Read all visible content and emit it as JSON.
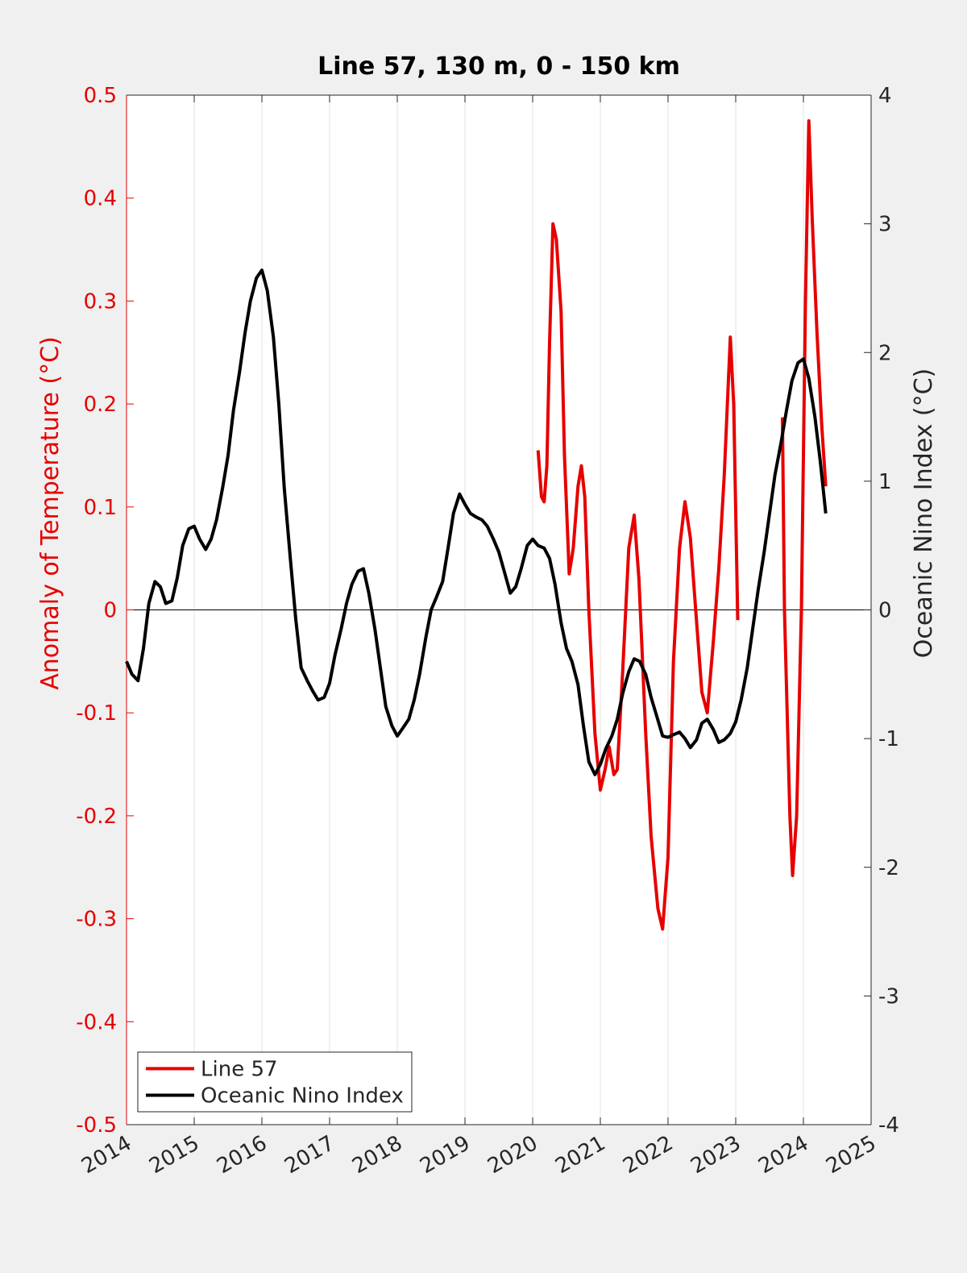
{
  "chart_data": {
    "type": "line",
    "title": "Line 57, 130 m, 0 - 150 km",
    "ylabel": "Anomaly of Temperature (°C)",
    "y2label": "Oceanic Nino Index (°C)",
    "xlim": [
      2014,
      2025
    ],
    "xticks": [
      2014,
      2015,
      2016,
      2017,
      2018,
      2019,
      2020,
      2021,
      2022,
      2023,
      2024,
      2025
    ],
    "ylim": [
      -0.5,
      0.5
    ],
    "yticks": [
      -0.5,
      -0.4,
      -0.3,
      -0.2,
      -0.1,
      0,
      0.1,
      0.2,
      0.3,
      0.4,
      0.5
    ],
    "y2lim": [
      -4,
      4
    ],
    "y2ticks": [
      -4,
      -3,
      -2,
      -1,
      0,
      1,
      2,
      3,
      4
    ],
    "grid": true,
    "zero_line": true,
    "ylabel_color": "#e60000",
    "legend": "lower left",
    "series": [
      {
        "name": "Line 57",
        "color": "#e60000",
        "axis": "y",
        "x": [
          2020.08,
          2020.13,
          2020.17,
          2020.21,
          2020.25,
          2020.3,
          2020.35,
          2020.42,
          2020.47,
          2020.54,
          2020.6,
          2020.67,
          2020.72,
          2020.77,
          2020.83,
          2020.92,
          2021.0,
          2021.07,
          2021.13,
          2021.2,
          2021.25,
          2021.33,
          2021.42,
          2021.5,
          2021.57,
          2021.67,
          2021.75,
          2021.85,
          2021.92,
          2022.0,
          2022.08,
          2022.17,
          2022.25,
          2022.33,
          2022.42,
          2022.5,
          2022.58,
          2022.67,
          2022.75,
          2022.83,
          2022.92,
          2022.97,
          2023.03,
          2023.35,
          2023.69,
          2023.72,
          2023.8,
          2023.84,
          2023.9,
          2023.97,
          2024.03,
          2024.08,
          2024.13,
          2024.2,
          2024.27,
          2024.33
        ],
        "values": [
          0.155,
          0.11,
          0.105,
          0.14,
          0.26,
          0.375,
          0.36,
          0.29,
          0.15,
          0.035,
          0.06,
          0.12,
          0.14,
          0.11,
          0.0,
          -0.12,
          -0.175,
          -0.155,
          -0.133,
          -0.16,
          -0.155,
          -0.06,
          0.06,
          0.092,
          0.03,
          -0.12,
          -0.22,
          -0.29,
          -0.31,
          -0.24,
          -0.05,
          0.06,
          0.105,
          0.07,
          -0.01,
          -0.08,
          -0.1,
          -0.03,
          0.04,
          0.13,
          0.265,
          0.2,
          -0.01,
          null,
          0.187,
          0.0,
          -0.2,
          -0.258,
          -0.2,
          0.0,
          0.3,
          0.475,
          0.38,
          0.27,
          0.18,
          0.12
        ]
      },
      {
        "name": "Oceanic Nino Index",
        "color": "#000000",
        "axis": "y2",
        "x": [
          2014.0,
          2014.08,
          2014.17,
          2014.25,
          2014.33,
          2014.42,
          2014.5,
          2014.58,
          2014.67,
          2014.75,
          2014.83,
          2014.92,
          2015.0,
          2015.08,
          2015.17,
          2015.25,
          2015.33,
          2015.42,
          2015.5,
          2015.58,
          2015.67,
          2015.75,
          2015.83,
          2015.92,
          2016.0,
          2016.08,
          2016.17,
          2016.25,
          2016.33,
          2016.42,
          2016.5,
          2016.58,
          2016.67,
          2016.75,
          2016.83,
          2016.92,
          2017.0,
          2017.08,
          2017.17,
          2017.25,
          2017.33,
          2017.42,
          2017.5,
          2017.58,
          2017.67,
          2017.75,
          2017.83,
          2017.92,
          2018.0,
          2018.08,
          2018.17,
          2018.25,
          2018.33,
          2018.42,
          2018.5,
          2018.58,
          2018.67,
          2018.75,
          2018.83,
          2018.92,
          2019.0,
          2019.08,
          2019.17,
          2019.25,
          2019.33,
          2019.42,
          2019.5,
          2019.58,
          2019.67,
          2019.75,
          2019.83,
          2019.92,
          2020.0,
          2020.08,
          2020.17,
          2020.25,
          2020.33,
          2020.42,
          2020.5,
          2020.58,
          2020.67,
          2020.75,
          2020.83,
          2020.92,
          2021.0,
          2021.08,
          2021.17,
          2021.25,
          2021.33,
          2021.42,
          2021.5,
          2021.58,
          2021.67,
          2021.75,
          2021.83,
          2021.92,
          2022.0,
          2022.08,
          2022.17,
          2022.25,
          2022.33,
          2022.42,
          2022.5,
          2022.58,
          2022.67,
          2022.75,
          2022.83,
          2022.92,
          2023.0,
          2023.08,
          2023.17,
          2023.25,
          2023.33,
          2023.42,
          2023.5,
          2023.58,
          2023.67,
          2023.75,
          2023.83,
          2023.92,
          2024.0,
          2024.08,
          2024.17,
          2024.25,
          2024.33
        ],
        "values": [
          -0.4,
          -0.5,
          -0.55,
          -0.3,
          0.05,
          0.22,
          0.18,
          0.05,
          0.07,
          0.25,
          0.5,
          0.63,
          0.65,
          0.55,
          0.47,
          0.55,
          0.7,
          0.95,
          1.2,
          1.55,
          1.85,
          2.15,
          2.4,
          2.58,
          2.64,
          2.48,
          2.12,
          1.6,
          0.95,
          0.4,
          -0.07,
          -0.45,
          -0.55,
          -0.63,
          -0.7,
          -0.68,
          -0.57,
          -0.35,
          -0.15,
          0.05,
          0.2,
          0.3,
          0.32,
          0.13,
          -0.15,
          -0.45,
          -0.75,
          -0.9,
          -0.98,
          -0.92,
          -0.85,
          -0.7,
          -0.5,
          -0.22,
          0.0,
          0.1,
          0.22,
          0.48,
          0.75,
          0.9,
          0.82,
          0.75,
          0.72,
          0.7,
          0.65,
          0.55,
          0.45,
          0.3,
          0.13,
          0.18,
          0.32,
          0.5,
          0.55,
          0.5,
          0.48,
          0.4,
          0.2,
          -0.1,
          -0.3,
          -0.4,
          -0.58,
          -0.9,
          -1.18,
          -1.28,
          -1.2,
          -1.08,
          -0.98,
          -0.85,
          -0.65,
          -0.48,
          -0.38,
          -0.4,
          -0.5,
          -0.68,
          -0.82,
          -0.98,
          -0.99,
          -0.97,
          -0.95,
          -1.0,
          -1.07,
          -1.01,
          -0.88,
          -0.85,
          -0.93,
          -1.03,
          -1.01,
          -0.96,
          -0.87,
          -0.7,
          -0.45,
          -0.15,
          0.15,
          0.45,
          0.75,
          1.05,
          1.3,
          1.55,
          1.78,
          1.92,
          1.95,
          1.8,
          1.5,
          1.15,
          0.75
        ]
      }
    ]
  }
}
